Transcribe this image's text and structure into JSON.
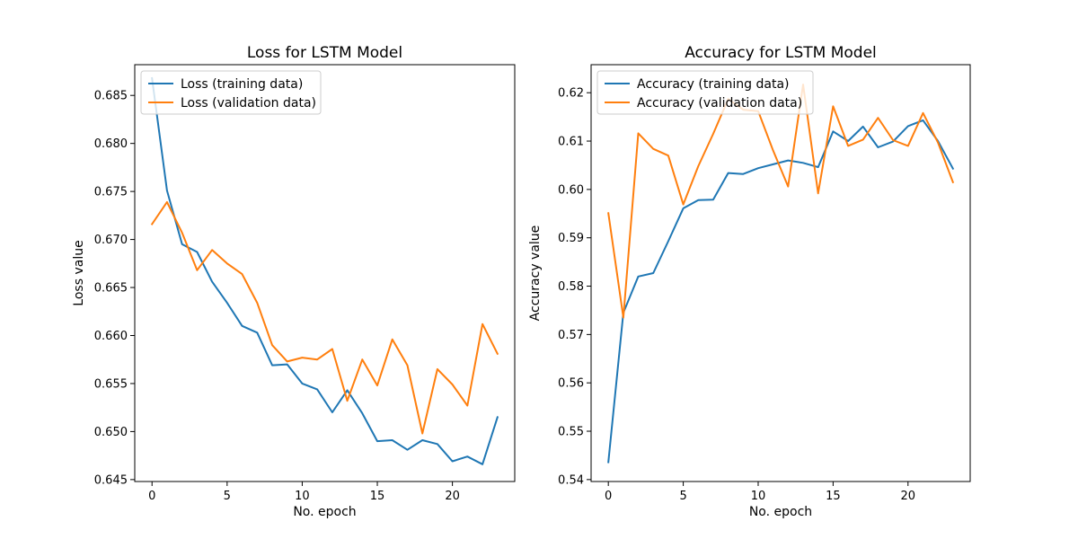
{
  "chart_data": [
    {
      "type": "line",
      "title": "Loss for LSTM Model",
      "xlabel": "No. epoch",
      "ylabel": "Loss value",
      "xlim": [
        -1.15,
        24.15
      ],
      "ylim": [
        0.6448,
        0.6882
      ],
      "xticks": [
        0,
        5,
        10,
        15,
        20
      ],
      "yticks": [
        0.645,
        0.65,
        0.655,
        0.66,
        0.665,
        0.67,
        0.675,
        0.68,
        0.685
      ],
      "ytick_labels": [
        "0.645",
        "0.650",
        "0.655",
        "0.660",
        "0.665",
        "0.670",
        "0.675",
        "0.680",
        "0.685"
      ],
      "legend": "upper-left",
      "grid": false,
      "x": [
        0,
        1,
        2,
        3,
        4,
        5,
        6,
        7,
        8,
        9,
        10,
        11,
        12,
        13,
        14,
        15,
        16,
        17,
        18,
        19,
        20,
        21,
        22,
        23
      ],
      "series": [
        {
          "name": "Loss (training data)",
          "color": "#1f77b4",
          "values": [
            0.6868,
            0.6751,
            0.6695,
            0.6687,
            0.6656,
            0.6634,
            0.661,
            0.6603,
            0.6569,
            0.657,
            0.655,
            0.6544,
            0.652,
            0.6543,
            0.6519,
            0.649,
            0.6491,
            0.6481,
            0.6491,
            0.6487,
            0.6469,
            0.6474,
            0.6466,
            0.6515
          ]
        },
        {
          "name": "Loss (validation data)",
          "color": "#ff7f0e",
          "values": [
            0.6716,
            0.6739,
            0.6707,
            0.6668,
            0.6689,
            0.6675,
            0.6664,
            0.6634,
            0.659,
            0.6573,
            0.6577,
            0.6575,
            0.6586,
            0.6532,
            0.6575,
            0.6548,
            0.6596,
            0.6569,
            0.6498,
            0.6565,
            0.6549,
            0.6527,
            0.6612,
            0.6581
          ]
        }
      ]
    },
    {
      "type": "line",
      "title": "Accuracy for LSTM Model",
      "xlabel": "No. epoch",
      "ylabel": "Accuracy value",
      "xlim": [
        -1.15,
        24.15
      ],
      "ylim": [
        0.5396,
        0.6258
      ],
      "xticks": [
        0,
        5,
        10,
        15,
        20
      ],
      "yticks": [
        0.54,
        0.55,
        0.56,
        0.57,
        0.58,
        0.59,
        0.6,
        0.61,
        0.62
      ],
      "ytick_labels": [
        "0.54",
        "0.55",
        "0.56",
        "0.57",
        "0.58",
        "0.59",
        "0.60",
        "0.61",
        "0.62"
      ],
      "legend": "upper-left",
      "grid": false,
      "x": [
        0,
        1,
        2,
        3,
        4,
        5,
        6,
        7,
        8,
        9,
        10,
        11,
        12,
        13,
        14,
        15,
        16,
        17,
        18,
        19,
        20,
        21,
        22,
        23
      ],
      "series": [
        {
          "name": "Accuracy (training data)",
          "color": "#1f77b4",
          "values": [
            0.5436,
            0.5745,
            0.582,
            0.5827,
            0.5893,
            0.5961,
            0.5978,
            0.5979,
            0.6034,
            0.6032,
            0.6044,
            0.6052,
            0.606,
            0.6055,
            0.6046,
            0.612,
            0.61,
            0.613,
            0.6087,
            0.6099,
            0.6131,
            0.6143,
            0.61,
            0.6043
          ]
        },
        {
          "name": "Accuracy (validation data)",
          "color": "#ff7f0e",
          "values": [
            0.5951,
            0.5735,
            0.6116,
            0.6084,
            0.607,
            0.5969,
            0.6048,
            0.6115,
            0.6187,
            0.6165,
            0.6162,
            0.608,
            0.6006,
            0.6217,
            0.5992,
            0.6172,
            0.609,
            0.6103,
            0.6148,
            0.6102,
            0.609,
            0.6158,
            0.6097,
            0.6015
          ]
        }
      ]
    }
  ]
}
